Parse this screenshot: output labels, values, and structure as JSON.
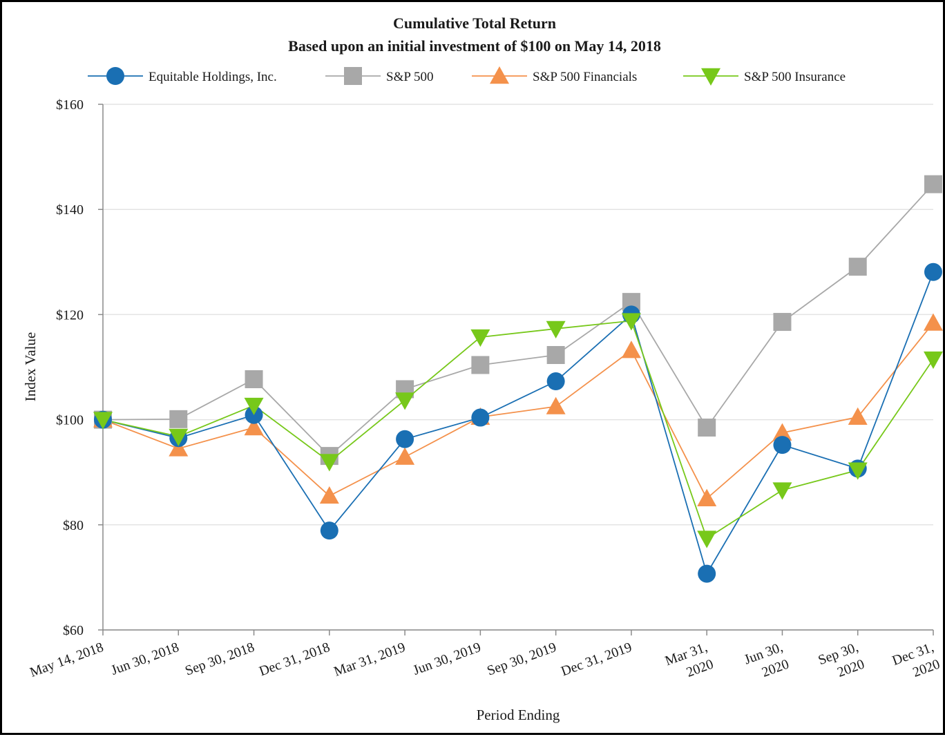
{
  "chart_data": {
    "type": "line",
    "title": "Cumulative Total Return",
    "subtitle": "Based upon an initial investment of $100 on May 14, 2018",
    "xlabel": "Period Ending",
    "ylabel": "Index Value",
    "ylim": [
      60,
      160
    ],
    "yticks": [
      {
        "value": 60,
        "label": "$60"
      },
      {
        "value": 80,
        "label": "$80"
      },
      {
        "value": 100,
        "label": "$100"
      },
      {
        "value": 120,
        "label": "$120"
      },
      {
        "value": 140,
        "label": "$140"
      },
      {
        "value": 160,
        "label": "$160"
      }
    ],
    "grid": true,
    "legend_position": "top",
    "categories": [
      "May 14, 2018",
      "Jun 30, 2018",
      "Sep 30, 2018",
      "Dec 31, 2018",
      "Mar 31, 2019",
      "Jun 30, 2019",
      "Sep 30, 2019",
      "Dec 31, 2019",
      "Mar 31, 2020",
      "Jun 30, 2020",
      "Sep 30, 2020",
      "Dec 31, 2020"
    ],
    "category_lines": [
      [
        "May 14, 2018"
      ],
      [
        "Jun 30, 2018"
      ],
      [
        "Sep 30, 2018"
      ],
      [
        "Dec 31, 2018"
      ],
      [
        "Mar 31, 2019"
      ],
      [
        "Jun 30, 2019"
      ],
      [
        "Sep 30, 2019"
      ],
      [
        "Dec 31, 2019"
      ],
      [
        "Mar 31,",
        "2020"
      ],
      [
        "Jun 30,",
        "2020"
      ],
      [
        "Sep 30,",
        "2020"
      ],
      [
        "Dec 31,",
        "2020"
      ]
    ],
    "series": [
      {
        "name": "Equitable Holdings, Inc.",
        "color": "#1a6fb3",
        "marker": "circle",
        "values": [
          100.0,
          96.5,
          100.9,
          78.9,
          96.3,
          100.4,
          107.3,
          120.0,
          70.7,
          95.2,
          90.7,
          128.1
        ]
      },
      {
        "name": "S&P 500",
        "color": "#a8a8a8",
        "marker": "square",
        "values": [
          100.0,
          100.1,
          107.7,
          93.1,
          105.8,
          110.4,
          112.3,
          122.4,
          98.5,
          118.6,
          129.1,
          144.8
        ]
      },
      {
        "name": "S&P 500 Financials",
        "color": "#f4914b",
        "marker": "triangle-up",
        "values": [
          100.0,
          94.5,
          98.5,
          85.5,
          92.9,
          100.5,
          102.5,
          113.2,
          85.0,
          97.5,
          100.5,
          118.4
        ]
      },
      {
        "name": "S&P 500 Insurance",
        "color": "#77c81a",
        "marker": "triangle-down",
        "values": [
          100.0,
          96.8,
          102.7,
          92.0,
          103.7,
          115.7,
          117.3,
          118.8,
          77.4,
          86.6,
          90.4,
          111.5
        ]
      }
    ]
  }
}
